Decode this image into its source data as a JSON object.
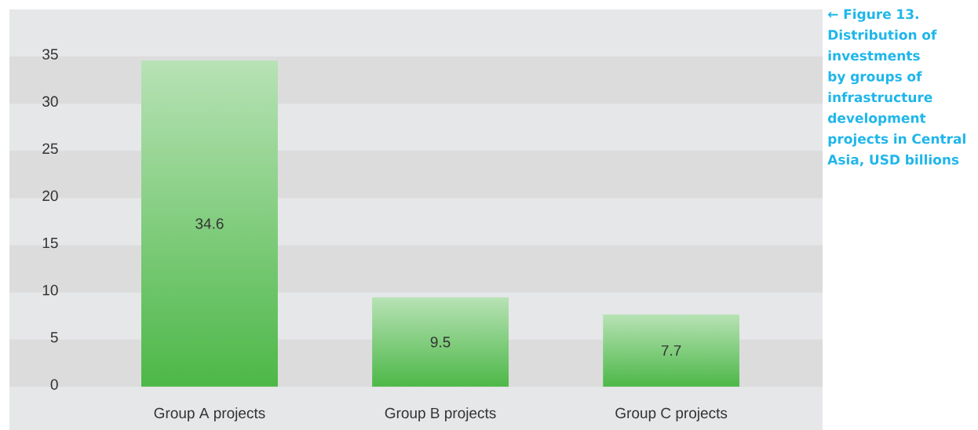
{
  "chart_data": {
    "type": "bar",
    "title": "← Figure 13. Distribution of investments by groups of infrastructure development projects in Central Asia, USD billions",
    "categories": [
      "Group A projects",
      "Group B projects",
      "Group C projects"
    ],
    "values": [
      34.6,
      9.5,
      7.7
    ],
    "color": "#4db848",
    "ylim": [
      0,
      40
    ],
    "yticks": [
      0,
      5,
      10,
      15,
      20,
      25,
      30,
      35
    ],
    "grid": "y",
    "data_labels": true
  }
}
